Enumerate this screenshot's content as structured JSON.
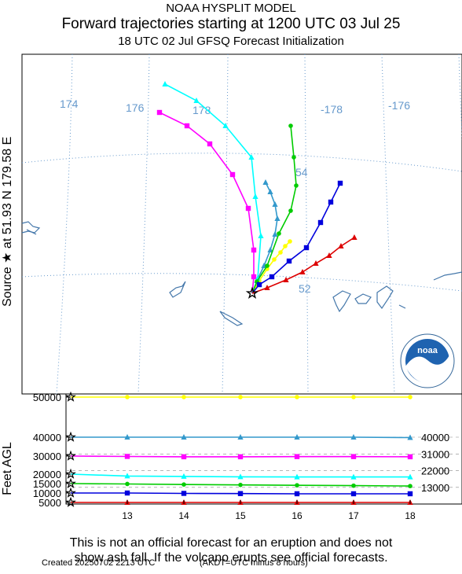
{
  "header": {
    "line1": "NOAA HYSPLIT MODEL",
    "line2": "Forward trajectories starting at 1200 UTC 03 Jul 25",
    "line3": "18 UTC 02 Jul    GFSQ  Forecast Initialization"
  },
  "map": {
    "source_label": "Source ★ at   51.93 N  179.58 E",
    "longitude_labels": [
      "174",
      "176",
      "178",
      "-178",
      "-176"
    ],
    "latitude_labels": [
      "54",
      "52"
    ],
    "logo_text": "noaa"
  },
  "colors": {
    "yellow": "#ffff00",
    "steelblue": "#3399cc",
    "magenta": "#ff00ff",
    "cyan": "#00ffff",
    "green": "#00cc00",
    "blue": "#0000dd",
    "red": "#dd0000",
    "graticule": "#6699cc",
    "coast": "#4477aa"
  },
  "chart_data": {
    "type": "line",
    "title": "Forward trajectories starting at 1200 UTC 03 Jul 25",
    "ylabel": "Feet AGL",
    "x": [
      12,
      13,
      14,
      15,
      16,
      17,
      18
    ],
    "x_ticks": [
      "13",
      "14",
      "15",
      "16",
      "17",
      "18"
    ],
    "y_left_ticks": [
      "50000",
      "40000",
      "30000",
      "20000",
      "15000",
      "10000",
      "5000"
    ],
    "y_right_ticks": [
      "40000",
      "31000",
      "22000",
      "13000"
    ],
    "ylim": [
      4000,
      51000
    ],
    "series": [
      {
        "color": "yellow",
        "marker": "circle",
        "start_ft": 50000,
        "values": [
          50000,
          50000,
          50000,
          50000,
          50000,
          50000,
          50000
        ]
      },
      {
        "color": "steelblue",
        "marker": "triangle",
        "start_ft": 40000,
        "values": [
          40000,
          40000,
          40000,
          40000,
          40000,
          40000,
          39800
        ]
      },
      {
        "color": "magenta",
        "marker": "square",
        "start_ft": 30000,
        "values": [
          30000,
          29800,
          29600,
          29600,
          29700,
          29700,
          29600
        ]
      },
      {
        "color": "cyan",
        "marker": "triangle",
        "start_ft": 20000,
        "values": [
          20000,
          19000,
          18800,
          18600,
          18500,
          18500,
          18500
        ]
      },
      {
        "color": "green",
        "marker": "circle",
        "start_ft": 15000,
        "values": [
          15000,
          14800,
          14500,
          14300,
          14100,
          13900,
          13700
        ]
      },
      {
        "color": "blue",
        "marker": "square",
        "start_ft": 10000,
        "values": [
          10000,
          10000,
          9800,
          9700,
          9600,
          9600,
          9600
        ]
      },
      {
        "color": "red",
        "marker": "triangle",
        "start_ft": 5000,
        "values": [
          5000,
          5000,
          5000,
          5000,
          5000,
          5000,
          5000
        ]
      }
    ]
  },
  "disclaimer": {
    "line1": "This is not an official forecast for an eruption and does not",
    "line2": "show ash fall. If the volcano erupts see official forecasts."
  },
  "footer": {
    "created": "Created 20250702 2213 UTC",
    "akdt": "(AKDT=UTC minus 8 hours)"
  }
}
